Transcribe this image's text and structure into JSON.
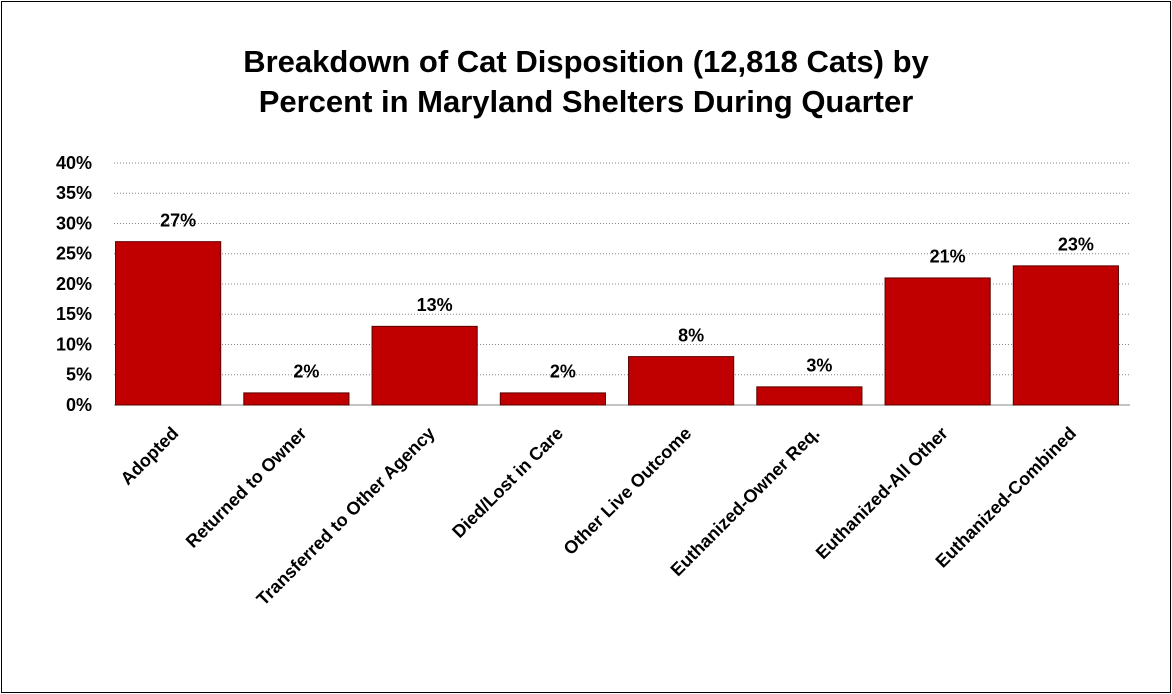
{
  "chart_data": {
    "type": "bar",
    "title": "Breakdown of Cat Disposition (12,818  Cats) by Percent in Maryland Shelters During Quarter",
    "categories": [
      "Adopted",
      "Returned to Owner",
      "Transferred to Other Agency",
      "Died/Lost in Care",
      "Other Live Outcome",
      "Euthanized-Owner Req.",
      "Euthanized-All Other",
      "Euthanized-Combined"
    ],
    "values": [
      27,
      2,
      13,
      2,
      8,
      3,
      21,
      23
    ],
    "value_labels": [
      "27%",
      "2%",
      "13%",
      "2%",
      "8%",
      "3%",
      "21%",
      "23%"
    ],
    "color": "#c00000",
    "ylim": [
      0,
      40
    ],
    "yticks": [
      {
        "value": 0,
        "label": "0%"
      },
      {
        "value": 5,
        "label": "5%"
      },
      {
        "value": 10,
        "label": "10%"
      },
      {
        "value": 15,
        "label": "15%"
      },
      {
        "value": 20,
        "label": "20%"
      },
      {
        "value": 25,
        "label": "25%"
      },
      {
        "value": 30,
        "label": "30%"
      },
      {
        "value": 35,
        "label": "35%"
      },
      {
        "value": 40,
        "label": "40%"
      }
    ],
    "grid": true
  }
}
